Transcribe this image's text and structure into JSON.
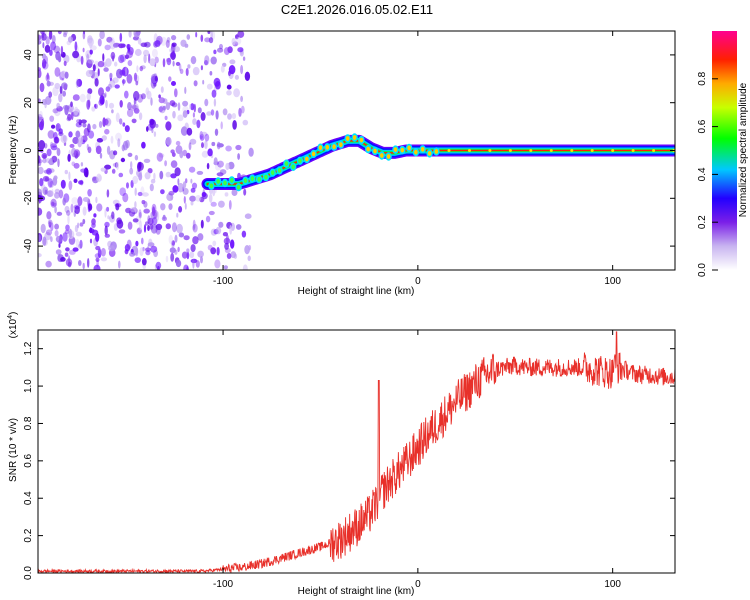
{
  "figure": {
    "title": "C2E1.2026.016.05.02.E11"
  },
  "chart_data": [
    {
      "type": "heatmap",
      "title": "C2E1.2026.016.05.02.E11",
      "xlabel": "Height of straight line (km)",
      "ylabel": "Frequency (Hz)",
      "xlim": [
        -195,
        132
      ],
      "ylim": [
        -50,
        50
      ],
      "xticks": [
        -100,
        0,
        100
      ],
      "xtick_labels": [
        "-100",
        "0",
        "100"
      ],
      "yticks": [
        -40,
        -20,
        0,
        20,
        40
      ],
      "ytick_labels": [
        "-40",
        "-20",
        "0",
        "20",
        "40"
      ],
      "noise_region_x": [
        -195,
        -85
      ],
      "ridge": {
        "x": [
          -108,
          -100,
          -92,
          -84,
          -76,
          -68,
          -60,
          -52,
          -44,
          -36,
          -30,
          -24,
          -18,
          -12,
          -6,
          0,
          8,
          20,
          40,
          60,
          80,
          100,
          120,
          132
        ],
        "frequency": [
          -14,
          -14,
          -14,
          -12,
          -10,
          -7,
          -4,
          -1,
          2,
          4,
          4,
          1,
          -1,
          -1,
          0,
          0,
          0,
          0,
          0,
          0,
          0,
          0,
          0,
          0
        ]
      },
      "colorbar": {
        "label": "Normalized spectral amplitude",
        "range": [
          0,
          1
        ],
        "ticks": [
          0.0,
          0.2,
          0.4,
          0.6,
          0.8
        ],
        "tick_labels": [
          "0.0",
          "0.2",
          "0.4",
          "0.6",
          "0.8"
        ],
        "colors": [
          "#ffffff",
          "#c8b4f0",
          "#8a2be2",
          "#5a00ff",
          "#0000ff",
          "#00c8ff",
          "#00ff00",
          "#c8ff00",
          "#ffaa00",
          "#ff0000",
          "#ff0090"
        ]
      }
    },
    {
      "type": "line",
      "xlabel": "Height of straight line (km)",
      "ylabel": "SNR (10 * v/v)",
      "y_multiplier": "(x10",
      "y_multiplier_exp": "4",
      "y_multiplier_close": ")",
      "xlim": [
        -195,
        132
      ],
      "ylim": [
        0,
        1.3
      ],
      "xticks": [
        -100,
        0,
        100
      ],
      "xtick_labels": [
        "-100",
        "0",
        "100"
      ],
      "yticks": [
        0.0,
        0.2,
        0.4,
        0.6,
        0.8,
        1.0,
        1.2
      ],
      "ytick_labels": [
        "0.0",
        "0.2",
        "0.4",
        "0.6",
        "0.8",
        "1.0",
        "1.2"
      ],
      "line_color": "#e8302a",
      "series": [
        {
          "name": "SNR",
          "x": [
            -195,
            -170,
            -140,
            -110,
            -100,
            -90,
            -80,
            -70,
            -60,
            -50,
            -40,
            -35,
            -30,
            -25,
            -22,
            -20,
            -18,
            -15,
            -10,
            -5,
            0,
            5,
            10,
            15,
            20,
            25,
            30,
            35,
            40,
            45,
            50,
            55,
            60,
            65,
            70,
            75,
            80,
            85,
            90,
            95,
            100,
            102,
            104,
            110,
            115,
            120,
            125,
            132
          ],
          "y": [
            0.01,
            0.01,
            0.01,
            0.01,
            0.02,
            0.03,
            0.05,
            0.08,
            0.11,
            0.14,
            0.18,
            0.22,
            0.26,
            0.31,
            0.36,
            0.4,
            0.44,
            0.48,
            0.54,
            0.6,
            0.67,
            0.74,
            0.8,
            0.86,
            0.92,
            0.97,
            1.02,
            1.06,
            1.09,
            1.1,
            1.11,
            1.1,
            1.1,
            1.1,
            1.1,
            1.1,
            1.1,
            1.1,
            1.09,
            1.08,
            1.07,
            1.29,
            1.1,
            1.07,
            1.06,
            1.06,
            1.05,
            1.05
          ]
        }
      ],
      "annotations": [
        {
          "x": -20,
          "y": 1.03,
          "text": ""
        },
        {
          "x": 102,
          "y": 1.29,
          "text": ""
        }
      ]
    }
  ]
}
